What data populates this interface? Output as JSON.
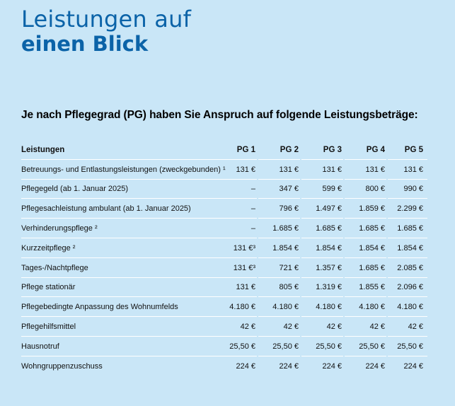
{
  "header": {
    "title_line1": "Leistungen auf",
    "title_line2": "einen Blick"
  },
  "intro": "Je nach Pflegegrad (PG) haben Sie Anspruch auf folgende Leistungsbeträge:",
  "table": {
    "columns": [
      "Leistungen",
      "PG 1",
      "PG 2",
      "PG 3",
      "PG 4",
      "PG 5"
    ],
    "rows": [
      [
        "Betreuungs- und Entlastungsleistungen (zweckgebunden) ¹",
        "131 €",
        "131 €",
        "131 €",
        "131 €",
        "131 €"
      ],
      [
        "Pflegegeld (ab 1. Januar 2025)",
        "–",
        "347 €",
        "599 €",
        "800 €",
        "990 €"
      ],
      [
        "Pflegesachleistung ambulant (ab 1. Januar 2025)",
        "–",
        "796 €",
        "1.497 €",
        "1.859 €",
        "2.299 €"
      ],
      [
        "Verhinderungspflege ²",
        "–",
        "1.685 €",
        "1.685 €",
        "1.685 €",
        "1.685 €"
      ],
      [
        "Kurzzeitpflege ²",
        "131 €³",
        "1.854 €",
        "1.854 €",
        "1.854 €",
        "1.854 €"
      ],
      [
        "Tages-/Nachtpflege",
        "131 €³",
        "721 €",
        "1.357 €",
        "1.685 €",
        "2.085 €"
      ],
      [
        "Pflege stationär",
        "131 €",
        "805 €",
        "1.319 €",
        "1.855 €",
        "2.096 €"
      ],
      [
        "Pflegebedingte Anpassung des Wohnumfelds",
        "4.180 €",
        "4.180 €",
        "4.180 €",
        "4.180 €",
        "4.180 €"
      ],
      [
        "Pflegehilfsmittel",
        "42 €",
        "42 €",
        "42 €",
        "42 €",
        "42 €"
      ],
      [
        "Hausnotruf",
        "25,50 €",
        "25,50 €",
        "25,50 €",
        "25,50 €",
        "25,50 €"
      ],
      [
        "Wohngruppenzuschuss",
        "224 €",
        "224 €",
        "224 €",
        "224 €",
        "224 €"
      ]
    ]
  }
}
